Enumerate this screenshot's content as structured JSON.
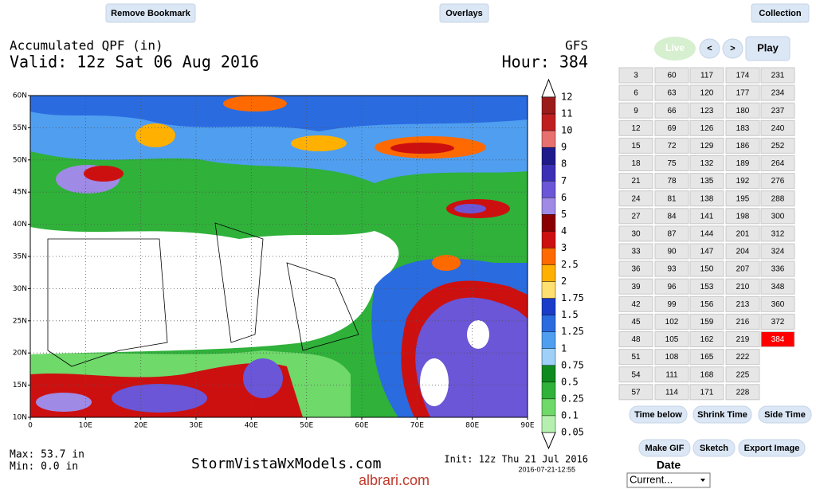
{
  "toolbar": {
    "remove_bookmark": "Remove Bookmark",
    "overlays": "Overlays",
    "collection": "Collection"
  },
  "map": {
    "title": "Accumulated QPF (in)",
    "model": "GFS",
    "valid": "Valid: 12z Sat 06 Aug 2016",
    "hour": "Hour: 384",
    "lat_labels": [
      "60N",
      "55N",
      "50N",
      "45N",
      "40N",
      "35N",
      "30N",
      "25N",
      "20N",
      "15N",
      "10N"
    ],
    "lon_labels": [
      "0",
      "10E",
      "20E",
      "30E",
      "40E",
      "50E",
      "60E",
      "70E",
      "80E",
      "90E"
    ],
    "legend_labels": [
      12,
      11,
      10,
      9,
      8,
      7,
      6,
      5,
      4,
      3,
      2.5,
      2,
      1.75,
      1.5,
      1.25,
      1,
      0.75,
      0.5,
      0.25,
      0.1,
      0.05
    ],
    "max": "Max: 53.7 in",
    "min": "Min: 0.0 in",
    "site": "StormVistaWxModels.com",
    "init": "Init: 12z Thu 21 Jul 2016",
    "timestamp": "2016-07-21-12:55"
  },
  "controls": {
    "live": "Live",
    "prev": "<",
    "next": ">",
    "play": "Play"
  },
  "hours": [
    3,
    6,
    9,
    12,
    15,
    18,
    21,
    24,
    27,
    30,
    33,
    36,
    39,
    42,
    45,
    48,
    51,
    54,
    57,
    60,
    63,
    66,
    69,
    72,
    75,
    78,
    81,
    84,
    87,
    90,
    93,
    96,
    99,
    102,
    105,
    108,
    111,
    114,
    117,
    120,
    123,
    126,
    129,
    132,
    135,
    138,
    141,
    144,
    147,
    150,
    153,
    156,
    159,
    162,
    165,
    168,
    171,
    174,
    177,
    180,
    183,
    186,
    189,
    192,
    195,
    198,
    201,
    204,
    207,
    210,
    213,
    216,
    219,
    222,
    225,
    228,
    231,
    234,
    237,
    240,
    252,
    264,
    276,
    288,
    300,
    312,
    324,
    336,
    348,
    360,
    372,
    384
  ],
  "selected_hour": 384,
  "view_buttons": [
    "Time below",
    "Shrink Time",
    "Side Time"
  ],
  "tool_buttons": [
    "Make GIF",
    "Sketch",
    "Export Image"
  ],
  "date_label": "Date",
  "date_select": "Current...",
  "watermark": "albrari.com"
}
